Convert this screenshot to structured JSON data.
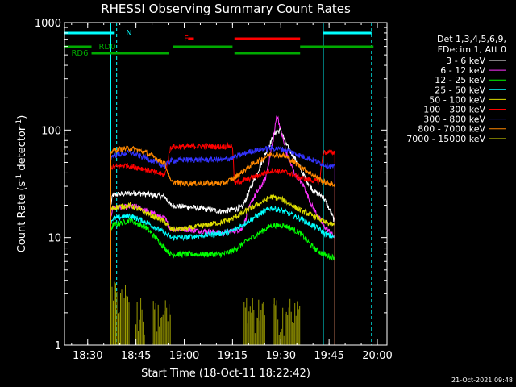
{
  "chart_data": {
    "type": "line",
    "title": "RHESSI Observing Summary Count Rates",
    "xlabel": "Start Time (18-Oct-11 18:22:42)",
    "ylabel_main": "Count Rate (s",
    "ylabel_sup1": "-1",
    "ylabel_mid": " detector",
    "ylabel_sup2": "-1",
    "ylabel_end": ")",
    "yscale": "log",
    "ylim": [
      1,
      1000
    ],
    "xlim_min": [
      18.38,
      20.05
    ],
    "x_ticks": [
      {
        "label": "18:30",
        "t": 18.5
      },
      {
        "label": "18:45",
        "t": 18.75
      },
      {
        "label": "19:00",
        "t": 19.0
      },
      {
        "label": "19:15",
        "t": 19.25
      },
      {
        "label": "19:30",
        "t": 19.5
      },
      {
        "label": "19:45",
        "t": 19.75
      },
      {
        "label": "20:00",
        "t": 20.0
      }
    ],
    "y_ticks": [
      {
        "label": "1",
        "v": 1
      },
      {
        "label": "10",
        "v": 10
      },
      {
        "label": "100",
        "v": 100
      },
      {
        "label": "1000",
        "v": 1000
      }
    ],
    "legend_header": [
      "Det 1,3,4,5,6,9,",
      "FDecim 1, Att 0"
    ],
    "legend_placement": "right",
    "series": [
      {
        "name": "3 - 6 keV",
        "color": "#ffffff",
        "points": [
          [
            18.62,
            20
          ],
          [
            18.63,
            25
          ],
          [
            18.75,
            26
          ],
          [
            18.82,
            25
          ],
          [
            18.9,
            24
          ],
          [
            18.93,
            20
          ],
          [
            19.05,
            19
          ],
          [
            19.2,
            17.5
          ],
          [
            19.3,
            19
          ],
          [
            19.42,
            60
          ],
          [
            19.47,
            95
          ],
          [
            19.5,
            100
          ],
          [
            19.53,
            72
          ],
          [
            19.58,
            52
          ],
          [
            19.63,
            35
          ],
          [
            19.67,
            27
          ],
          [
            19.72,
            24
          ],
          [
            19.76,
            17
          ],
          [
            19.78,
            14
          ]
        ]
      },
      {
        "name": "6 - 12 keV",
        "color": "#ff33ff",
        "points": [
          [
            18.62,
            16
          ],
          [
            18.63,
            19
          ],
          [
            18.75,
            19.5
          ],
          [
            18.9,
            15
          ],
          [
            18.93,
            12
          ],
          [
            19.0,
            12
          ],
          [
            19.2,
            11
          ],
          [
            19.3,
            12
          ],
          [
            19.35,
            22
          ],
          [
            19.42,
            35
          ],
          [
            19.46,
            80
          ],
          [
            19.48,
            140
          ],
          [
            19.5,
            100
          ],
          [
            19.53,
            60
          ],
          [
            19.57,
            40
          ],
          [
            19.62,
            30
          ],
          [
            19.66,
            20
          ],
          [
            19.7,
            15
          ],
          [
            19.72,
            13
          ],
          [
            19.76,
            11
          ],
          [
            19.78,
            10
          ]
        ]
      },
      {
        "name": "12 - 25 keV",
        "color": "#00ff00",
        "points": [
          [
            18.62,
            12
          ],
          [
            18.63,
            13
          ],
          [
            18.72,
            14.5
          ],
          [
            18.8,
            12.5
          ],
          [
            18.9,
            8
          ],
          [
            18.93,
            7
          ],
          [
            19.0,
            7
          ],
          [
            19.2,
            7
          ],
          [
            19.25,
            7.5
          ],
          [
            19.35,
            10
          ],
          [
            19.45,
            13
          ],
          [
            19.52,
            13
          ],
          [
            19.6,
            11
          ],
          [
            19.67,
            8
          ],
          [
            19.72,
            7
          ],
          [
            19.78,
            6.5
          ]
        ]
      },
      {
        "name": "25 - 50 keV",
        "color": "#00ffff",
        "points": [
          [
            18.62,
            14
          ],
          [
            18.63,
            15
          ],
          [
            18.72,
            16
          ],
          [
            18.8,
            14
          ],
          [
            18.9,
            11
          ],
          [
            18.93,
            10
          ],
          [
            19.0,
            10
          ],
          [
            19.2,
            11
          ],
          [
            19.25,
            11.5
          ],
          [
            19.35,
            15
          ],
          [
            19.45,
            19
          ],
          [
            19.5,
            18
          ],
          [
            19.6,
            15
          ],
          [
            19.7,
            12
          ],
          [
            19.72,
            11
          ],
          [
            19.78,
            10
          ]
        ]
      },
      {
        "name": "50 - 100 keV",
        "color": "#dddd00",
        "points": [
          [
            18.62,
            18
          ],
          [
            18.63,
            19
          ],
          [
            18.72,
            20
          ],
          [
            18.8,
            17
          ],
          [
            18.9,
            14
          ],
          [
            18.93,
            12
          ],
          [
            19.0,
            12
          ],
          [
            19.2,
            14
          ],
          [
            19.25,
            15
          ],
          [
            19.35,
            19
          ],
          [
            19.45,
            24
          ],
          [
            19.5,
            23
          ],
          [
            19.6,
            18
          ],
          [
            19.7,
            15
          ],
          [
            19.72,
            14
          ],
          [
            19.78,
            13
          ]
        ]
      },
      {
        "name": "100 - 300 keV",
        "color": "#ff0000",
        "points": [
          [
            18.62,
            45
          ],
          [
            18.63,
            45
          ],
          [
            18.7,
            47
          ],
          [
            18.78,
            44
          ],
          [
            18.9,
            38
          ],
          [
            18.93,
            70
          ],
          [
            19.0,
            70
          ],
          [
            19.1,
            71
          ],
          [
            19.2,
            70
          ],
          [
            19.25,
            72
          ],
          [
            19.26,
            32
          ],
          [
            19.33,
            35
          ],
          [
            19.45,
            42
          ],
          [
            19.52,
            41
          ],
          [
            19.6,
            36
          ],
          [
            19.7,
            33
          ],
          [
            19.72,
            62
          ],
          [
            19.78,
            62
          ]
        ]
      },
      {
        "name": "300 - 800 keV",
        "color": "#3333ff",
        "points": [
          [
            18.62,
            55
          ],
          [
            18.63,
            58
          ],
          [
            18.72,
            62
          ],
          [
            18.8,
            55
          ],
          [
            18.9,
            46
          ],
          [
            18.93,
            52
          ],
          [
            19.0,
            53
          ],
          [
            19.2,
            53
          ],
          [
            19.25,
            55
          ],
          [
            19.35,
            64
          ],
          [
            19.45,
            68
          ],
          [
            19.52,
            66
          ],
          [
            19.6,
            58
          ],
          [
            19.7,
            50
          ],
          [
            19.72,
            48
          ],
          [
            19.78,
            45
          ]
        ]
      },
      {
        "name": "800 - 7000 keV",
        "color": "#ff8800",
        "points": [
          [
            18.62,
            62
          ],
          [
            18.63,
            65
          ],
          [
            18.72,
            68
          ],
          [
            18.8,
            62
          ],
          [
            18.9,
            49
          ],
          [
            18.93,
            33
          ],
          [
            19.0,
            32
          ],
          [
            19.2,
            32
          ],
          [
            19.25,
            35
          ],
          [
            19.35,
            48
          ],
          [
            19.45,
            60
          ],
          [
            19.52,
            58
          ],
          [
            19.6,
            46
          ],
          [
            19.7,
            35
          ],
          [
            19.72,
            33
          ],
          [
            19.78,
            31
          ]
        ]
      },
      {
        "name": "7000 - 15000 keV",
        "color": "#999900",
        "bursts": [
          [
            18.62,
            18.72,
            3
          ],
          [
            18.75,
            18.8,
            2
          ],
          [
            18.84,
            18.93,
            2
          ],
          [
            19.31,
            19.42,
            2
          ],
          [
            19.46,
            19.6,
            2
          ]
        ]
      }
    ],
    "flags": [
      {
        "label": "N",
        "color": "#00ffff",
        "segments": [
          [
            18.38,
            18.64
          ],
          [
            19.72,
            19.97
          ]
        ],
        "level": 1
      },
      {
        "label": "F",
        "color": "#ff0000",
        "segments": [
          [
            19.02,
            19.05
          ],
          [
            19.26,
            19.6
          ]
        ],
        "level": 2
      },
      {
        "label": "RD0",
        "color": "#00aa00",
        "segments": [
          [
            18.38,
            18.52
          ],
          [
            18.94,
            19.25
          ],
          [
            19.6,
            19.98
          ]
        ],
        "level": 3
      },
      {
        "label": "RD6",
        "color": "#00aa00",
        "segments": [
          [
            18.52,
            18.92
          ],
          [
            19.26,
            19.6
          ]
        ],
        "level": 4
      }
    ],
    "vlines_solid": [
      18.62,
      19.72
    ],
    "vlines_dashed": [
      18.65,
      19.97
    ],
    "grid": false
  },
  "footer": {
    "date": "21-Oct-2021 09:48"
  }
}
